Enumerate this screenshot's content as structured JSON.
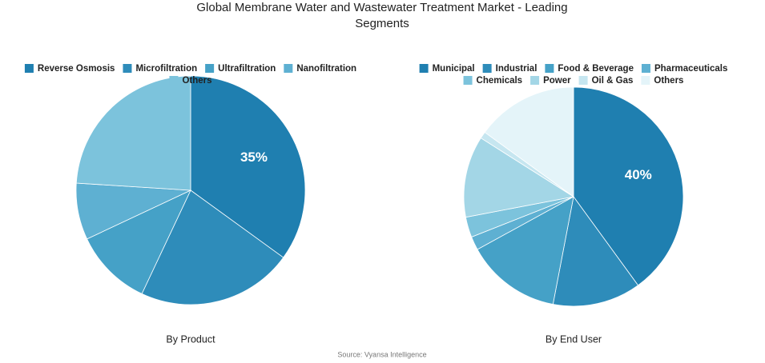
{
  "title_lines": [
    "Global Membrane Water and Wastewater Treatment Market - Leading",
    "Segments"
  ],
  "source": "Source: Vyansa Intelligence",
  "chart_data": [
    {
      "type": "pie",
      "title": "By Product",
      "categories": [
        "Reverse Osmosis",
        "Microfiltration",
        "Ultrafiltration",
        "Nanofiltration",
        "Others"
      ],
      "values": [
        35,
        22,
        11,
        8,
        24
      ],
      "value_labels": [
        "35%",
        null,
        null,
        null,
        null
      ],
      "colors": [
        "#1f7fb0",
        "#2e8cba",
        "#45a1c7",
        "#5eb0d2",
        "#7cc3dc"
      ]
    },
    {
      "type": "pie",
      "title": "By End User",
      "categories": [
        "Municipal",
        "Industrial",
        "Food & Beverage",
        "Pharmaceuticals",
        "Chemicals",
        "Power",
        "Oil & Gas",
        "Others"
      ],
      "values": [
        40,
        13,
        14,
        2,
        3,
        12,
        1,
        15
      ],
      "value_labels": [
        "40%",
        null,
        null,
        null,
        null,
        null,
        null,
        null
      ],
      "colors": [
        "#1f7fb0",
        "#2e8cba",
        "#45a1c7",
        "#5eb0d2",
        "#7cc3dc",
        "#a3d6e6",
        "#c6e6f0",
        "#e4f4f9"
      ]
    }
  ]
}
